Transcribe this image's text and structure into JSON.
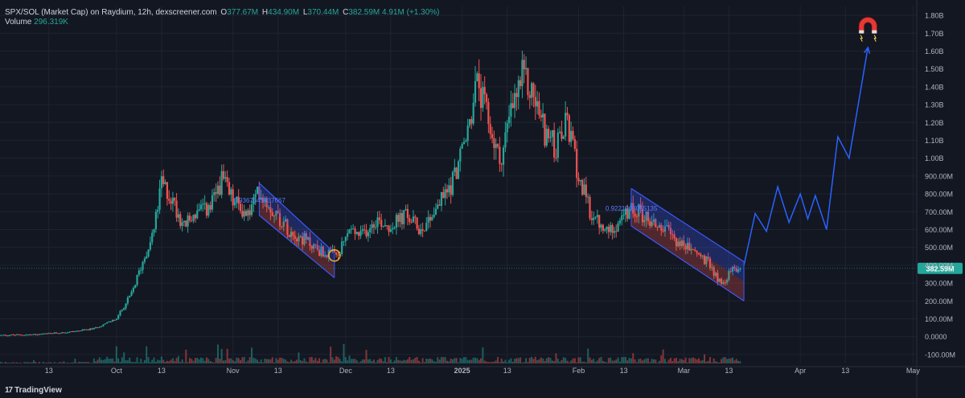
{
  "header": {
    "title": "SPX/SOL (Market Cap) on Raydium, 12h, dexscreener.com",
    "open_key": "O",
    "open": "377.67M",
    "high_key": "H",
    "high": "434.90M",
    "low_key": "L",
    "low": "370.44M",
    "close_key": "C",
    "close": "382.59M",
    "change": "4.91M (+1.30%)",
    "volume_label": "Volume",
    "volume": "296.319K"
  },
  "branding": {
    "logo_mark": "17",
    "name": "TradingView"
  },
  "colors": {
    "bg": "#131722",
    "up": "#26a69a",
    "down": "#ef5350",
    "grid": "#1f2330",
    "channel": "#3d5afe",
    "projection": "#2962ff",
    "price_badge": "#26a69a"
  },
  "chart_data": {
    "type": "candlestick",
    "interval": "12h",
    "y_unit": "market cap (USD)",
    "ylim": [
      -150,
      1850
    ],
    "y_ticks": [
      {
        "label": "1.80B",
        "v": 1800
      },
      {
        "label": "1.70B",
        "v": 1700
      },
      {
        "label": "1.60B",
        "v": 1600
      },
      {
        "label": "1.50B",
        "v": 1500
      },
      {
        "label": "1.40B",
        "v": 1400
      },
      {
        "label": "1.30B",
        "v": 1300
      },
      {
        "label": "1.20B",
        "v": 1200
      },
      {
        "label": "1.10B",
        "v": 1100
      },
      {
        "label": "1.00B",
        "v": 1000
      },
      {
        "label": "900.00M",
        "v": 900
      },
      {
        "label": "800.00M",
        "v": 800
      },
      {
        "label": "700.00M",
        "v": 700
      },
      {
        "label": "600.00M",
        "v": 600
      },
      {
        "label": "500.00M",
        "v": 500
      },
      {
        "label": "400.00M",
        "v": 400
      },
      {
        "label": "300.00M",
        "v": 300
      },
      {
        "label": "200.00M",
        "v": 200
      },
      {
        "label": "100.00M",
        "v": 100
      },
      {
        "label": "0.0000",
        "v": 0
      },
      {
        "label": "-100.00M",
        "v": -100
      }
    ],
    "x_ticks": [
      {
        "label": "13",
        "d": "2024-09-13"
      },
      {
        "label": "Oct",
        "d": "2024-10-01"
      },
      {
        "label": "13",
        "d": "2024-10-13"
      },
      {
        "label": "Nov",
        "d": "2024-11-01"
      },
      {
        "label": "13",
        "d": "2024-11-13"
      },
      {
        "label": "Dec",
        "d": "2024-12-01"
      },
      {
        "label": "13",
        "d": "2024-12-13"
      },
      {
        "label": "2025",
        "d": "2025-01-01"
      },
      {
        "label": "13",
        "d": "2025-01-13"
      },
      {
        "label": "Feb",
        "d": "2025-02-01"
      },
      {
        "label": "13",
        "d": "2025-02-13"
      },
      {
        "label": "Mar",
        "d": "2025-03-01"
      },
      {
        "label": "13",
        "d": "2025-03-13"
      },
      {
        "label": "Apr",
        "d": "2025-04-01"
      },
      {
        "label": "13",
        "d": "2025-04-13"
      },
      {
        "label": "May",
        "d": "2025-05-01"
      }
    ],
    "x_range": [
      "2024-08-31",
      "2025-05-02"
    ],
    "last_price": {
      "label": "382.59M",
      "v": 382.59
    },
    "price_path": [
      {
        "d": "2024-08-31",
        "v": 8
      },
      {
        "d": "2024-09-10",
        "v": 12
      },
      {
        "d": "2024-09-18",
        "v": 25
      },
      {
        "d": "2024-09-25",
        "v": 45
      },
      {
        "d": "2024-10-01",
        "v": 100
      },
      {
        "d": "2024-10-05",
        "v": 240
      },
      {
        "d": "2024-10-08",
        "v": 420
      },
      {
        "d": "2024-10-11",
        "v": 600
      },
      {
        "d": "2024-10-13",
        "v": 860
      },
      {
        "d": "2024-10-16",
        "v": 760
      },
      {
        "d": "2024-10-19",
        "v": 620
      },
      {
        "d": "2024-10-22",
        "v": 690
      },
      {
        "d": "2024-10-26",
        "v": 720
      },
      {
        "d": "2024-10-29",
        "v": 880
      },
      {
        "d": "2024-11-01",
        "v": 760
      },
      {
        "d": "2024-11-05",
        "v": 680
      },
      {
        "d": "2024-11-08",
        "v": 820
      },
      {
        "d": "2024-11-12",
        "v": 700
      },
      {
        "d": "2024-11-16",
        "v": 600
      },
      {
        "d": "2024-11-21",
        "v": 530
      },
      {
        "d": "2024-11-25",
        "v": 470
      },
      {
        "d": "2024-11-29",
        "v": 450
      },
      {
        "d": "2024-12-02",
        "v": 600
      },
      {
        "d": "2024-12-05",
        "v": 560
      },
      {
        "d": "2024-12-09",
        "v": 660
      },
      {
        "d": "2024-12-13",
        "v": 620
      },
      {
        "d": "2024-12-17",
        "v": 680
      },
      {
        "d": "2024-12-21",
        "v": 600
      },
      {
        "d": "2024-12-25",
        "v": 720
      },
      {
        "d": "2024-12-29",
        "v": 850
      },
      {
        "d": "2025-01-02",
        "v": 1100
      },
      {
        "d": "2025-01-05",
        "v": 1420
      },
      {
        "d": "2025-01-08",
        "v": 1200
      },
      {
        "d": "2025-01-11",
        "v": 980
      },
      {
        "d": "2025-01-14",
        "v": 1250
      },
      {
        "d": "2025-01-17",
        "v": 1450
      },
      {
        "d": "2025-01-20",
        "v": 1350
      },
      {
        "d": "2025-01-23",
        "v": 1150
      },
      {
        "d": "2025-01-26",
        "v": 1050
      },
      {
        "d": "2025-01-29",
        "v": 1200
      },
      {
        "d": "2025-02-01",
        "v": 900
      },
      {
        "d": "2025-02-04",
        "v": 700
      },
      {
        "d": "2025-02-08",
        "v": 580
      },
      {
        "d": "2025-02-12",
        "v": 650
      },
      {
        "d": "2025-02-16",
        "v": 720
      },
      {
        "d": "2025-02-20",
        "v": 650
      },
      {
        "d": "2025-02-24",
        "v": 600
      },
      {
        "d": "2025-02-28",
        "v": 520
      },
      {
        "d": "2025-03-04",
        "v": 480
      },
      {
        "d": "2025-03-08",
        "v": 400
      },
      {
        "d": "2025-03-11",
        "v": 290
      },
      {
        "d": "2025-03-14",
        "v": 380
      },
      {
        "d": "2025-03-16",
        "v": 382.59
      }
    ],
    "channels": [
      {
        "upper": [
          {
            "d": "2024-11-08",
            "v": 860
          },
          {
            "d": "2024-11-28",
            "v": 470
          }
        ],
        "lower": [
          {
            "d": "2024-11-08",
            "v": 680
          },
          {
            "d": "2024-11-28",
            "v": 330
          }
        ],
        "fib_label": "0.9367341737667"
      },
      {
        "upper": [
          {
            "d": "2025-02-15",
            "v": 830
          },
          {
            "d": "2025-03-17",
            "v": 420
          }
        ],
        "lower": [
          {
            "d": "2025-02-15",
            "v": 620
          },
          {
            "d": "2025-03-17",
            "v": 200
          }
        ],
        "fib_label": "0.9221918055135"
      }
    ],
    "circle_marker": {
      "d": "2024-11-28",
      "v": 455
    },
    "projection": [
      {
        "d": "2025-03-17",
        "v": 400
      },
      {
        "d": "2025-03-20",
        "v": 690
      },
      {
        "d": "2025-03-23",
        "v": 590
      },
      {
        "d": "2025-03-26",
        "v": 840
      },
      {
        "d": "2025-03-29",
        "v": 640
      },
      {
        "d": "2025-04-01",
        "v": 800
      },
      {
        "d": "2025-04-03",
        "v": 660
      },
      {
        "d": "2025-04-05",
        "v": 790
      },
      {
        "d": "2025-04-08",
        "v": 600
      },
      {
        "d": "2025-04-11",
        "v": 1120
      },
      {
        "d": "2025-04-14",
        "v": 1000
      },
      {
        "d": "2025-04-19",
        "v": 1620
      }
    ],
    "target_icon": {
      "name": "magnet-icon",
      "d": "2025-04-19",
      "v": 1730
    },
    "volume_max_k": 300,
    "volume_bars_count": 478
  }
}
